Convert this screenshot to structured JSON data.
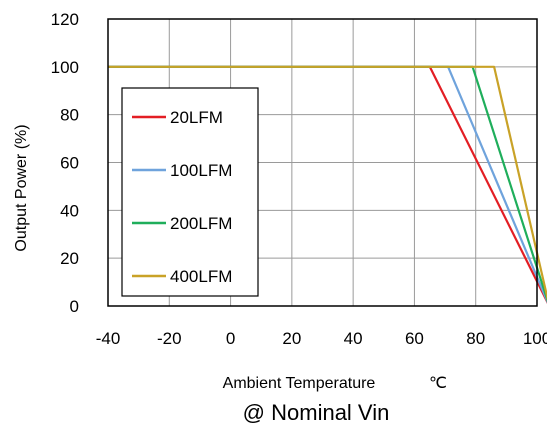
{
  "chart_data": {
    "type": "line",
    "xlabel": "Ambient Temperature",
    "xunit": "℃",
    "ylabel": "Output Power  (%)",
    "footnote": "@ Nominal Vin",
    "xlim": [
      -40,
      100
    ],
    "ylim": [
      0,
      120
    ],
    "xticks": [
      "-40",
      "-20",
      "0",
      "20",
      "40",
      "60",
      "80",
      "100"
    ],
    "yticks": [
      "0",
      "20",
      "40",
      "60",
      "80",
      "100",
      "120"
    ],
    "grid": true,
    "legend_position": "left",
    "series": [
      {
        "name": "20LFM",
        "color": "#e31e24",
        "points": [
          [
            -40,
            100
          ],
          [
            65,
            100
          ],
          [
            104,
            0
          ]
        ]
      },
      {
        "name": "100LFM",
        "color": "#6fa3dc",
        "points": [
          [
            -40,
            100
          ],
          [
            71,
            100
          ],
          [
            104,
            0
          ]
        ]
      },
      {
        "name": "200LFM",
        "color": "#1fae5b",
        "points": [
          [
            -40,
            100
          ],
          [
            79,
            100
          ],
          [
            104,
            0
          ]
        ]
      },
      {
        "name": "400LFM",
        "color": "#c9a227",
        "points": [
          [
            -40,
            100
          ],
          [
            86,
            100
          ],
          [
            104,
            0
          ]
        ]
      }
    ]
  }
}
